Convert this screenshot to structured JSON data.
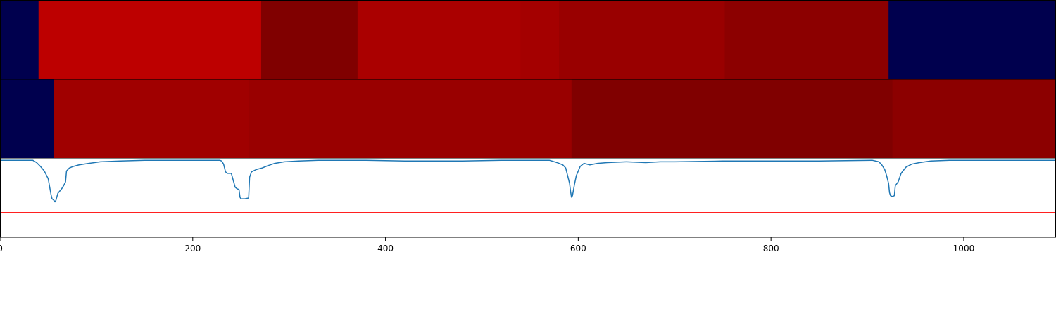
{
  "chart_data": [
    {
      "type": "heatmap",
      "panel": "top-band",
      "colormap": "seismic",
      "xlim": [
        0,
        1095
      ],
      "segments": [
        {
          "start": 0,
          "end": 40,
          "color": "#00004e"
        },
        {
          "start": 40,
          "end": 271,
          "color": "#bd0000"
        },
        {
          "start": 271,
          "end": 371,
          "color": "#800000"
        },
        {
          "start": 371,
          "end": 540,
          "color": "#aa0000"
        },
        {
          "start": 540,
          "end": 580,
          "color": "#a40000"
        },
        {
          "start": 580,
          "end": 752,
          "color": "#990000"
        },
        {
          "start": 752,
          "end": 922,
          "color": "#8c0000"
        },
        {
          "start": 922,
          "end": 1095,
          "color": "#00004e"
        }
      ]
    },
    {
      "type": "heatmap",
      "panel": "middle-band",
      "colormap": "seismic",
      "xlim": [
        0,
        1095
      ],
      "segments": [
        {
          "start": 0,
          "end": 56,
          "color": "#00004e"
        },
        {
          "start": 56,
          "end": 258,
          "color": "#a00000"
        },
        {
          "start": 258,
          "end": 593,
          "color": "#990000"
        },
        {
          "start": 593,
          "end": 926,
          "color": "#800000"
        },
        {
          "start": 926,
          "end": 1095,
          "color": "#8c0000"
        }
      ]
    },
    {
      "type": "line",
      "panel": "bottom",
      "xlim": [
        0,
        1095
      ],
      "ylim": [
        -1,
        0.02
      ],
      "xticks": [
        0,
        200,
        400,
        600,
        800,
        1000
      ],
      "line_color": "#1f77b4",
      "threshold": {
        "value": -0.68,
        "color": "#ff0000"
      },
      "points": [
        [
          0,
          0.0
        ],
        [
          34,
          0.0
        ],
        [
          38,
          -0.03
        ],
        [
          42,
          -0.08
        ],
        [
          46,
          -0.14
        ],
        [
          50,
          -0.24
        ],
        [
          52,
          -0.38
        ],
        [
          53,
          -0.45
        ],
        [
          54,
          -0.5
        ],
        [
          56,
          -0.52
        ],
        [
          57,
          -0.54
        ],
        [
          58,
          -0.52
        ],
        [
          60,
          -0.43
        ],
        [
          62,
          -0.4
        ],
        [
          64,
          -0.37
        ],
        [
          66,
          -0.33
        ],
        [
          68,
          -0.28
        ],
        [
          69,
          -0.14
        ],
        [
          72,
          -0.1
        ],
        [
          76,
          -0.08
        ],
        [
          82,
          -0.06
        ],
        [
          92,
          -0.04
        ],
        [
          104,
          -0.02
        ],
        [
          125,
          -0.01
        ],
        [
          150,
          0.0
        ],
        [
          200,
          0.0
        ],
        [
          228,
          0.0
        ],
        [
          230,
          -0.01
        ],
        [
          232,
          -0.05
        ],
        [
          233,
          -0.1
        ],
        [
          234,
          -0.15
        ],
        [
          236,
          -0.17
        ],
        [
          240,
          -0.17
        ],
        [
          242,
          -0.26
        ],
        [
          244,
          -0.35
        ],
        [
          246,
          -0.37
        ],
        [
          248,
          -0.38
        ],
        [
          249,
          -0.48
        ],
        [
          250,
          -0.5
        ],
        [
          254,
          -0.5
        ],
        [
          258,
          -0.49
        ],
        [
          259,
          -0.22
        ],
        [
          261,
          -0.15
        ],
        [
          266,
          -0.12
        ],
        [
          272,
          -0.1
        ],
        [
          278,
          -0.07
        ],
        [
          285,
          -0.04
        ],
        [
          295,
          -0.02
        ],
        [
          310,
          -0.01
        ],
        [
          330,
          0.0
        ],
        [
          380,
          0.0
        ],
        [
          420,
          -0.01
        ],
        [
          480,
          -0.01
        ],
        [
          520,
          0.0
        ],
        [
          570,
          0.0
        ],
        [
          578,
          -0.03
        ],
        [
          584,
          -0.06
        ],
        [
          587,
          -0.1
        ],
        [
          589,
          -0.2
        ],
        [
          591,
          -0.3
        ],
        [
          592,
          -0.4
        ],
        [
          593,
          -0.48
        ],
        [
          594,
          -0.46
        ],
        [
          596,
          -0.32
        ],
        [
          598,
          -0.2
        ],
        [
          602,
          -0.08
        ],
        [
          606,
          -0.04
        ],
        [
          612,
          -0.06
        ],
        [
          620,
          -0.04
        ],
        [
          630,
          -0.03
        ],
        [
          650,
          -0.02
        ],
        [
          670,
          -0.03
        ],
        [
          685,
          -0.02
        ],
        [
          700,
          -0.02
        ],
        [
          750,
          -0.01
        ],
        [
          800,
          -0.01
        ],
        [
          850,
          -0.01
        ],
        [
          905,
          0.0
        ],
        [
          912,
          -0.02
        ],
        [
          915,
          -0.06
        ],
        [
          918,
          -0.12
        ],
        [
          920,
          -0.2
        ],
        [
          922,
          -0.3
        ],
        [
          923,
          -0.42
        ],
        [
          924,
          -0.46
        ],
        [
          926,
          -0.47
        ],
        [
          928,
          -0.46
        ],
        [
          929,
          -0.33
        ],
        [
          932,
          -0.28
        ],
        [
          935,
          -0.17
        ],
        [
          940,
          -0.09
        ],
        [
          946,
          -0.05
        ],
        [
          954,
          -0.03
        ],
        [
          966,
          -0.01
        ],
        [
          985,
          0.0
        ],
        [
          1095,
          0.0
        ]
      ]
    }
  ]
}
